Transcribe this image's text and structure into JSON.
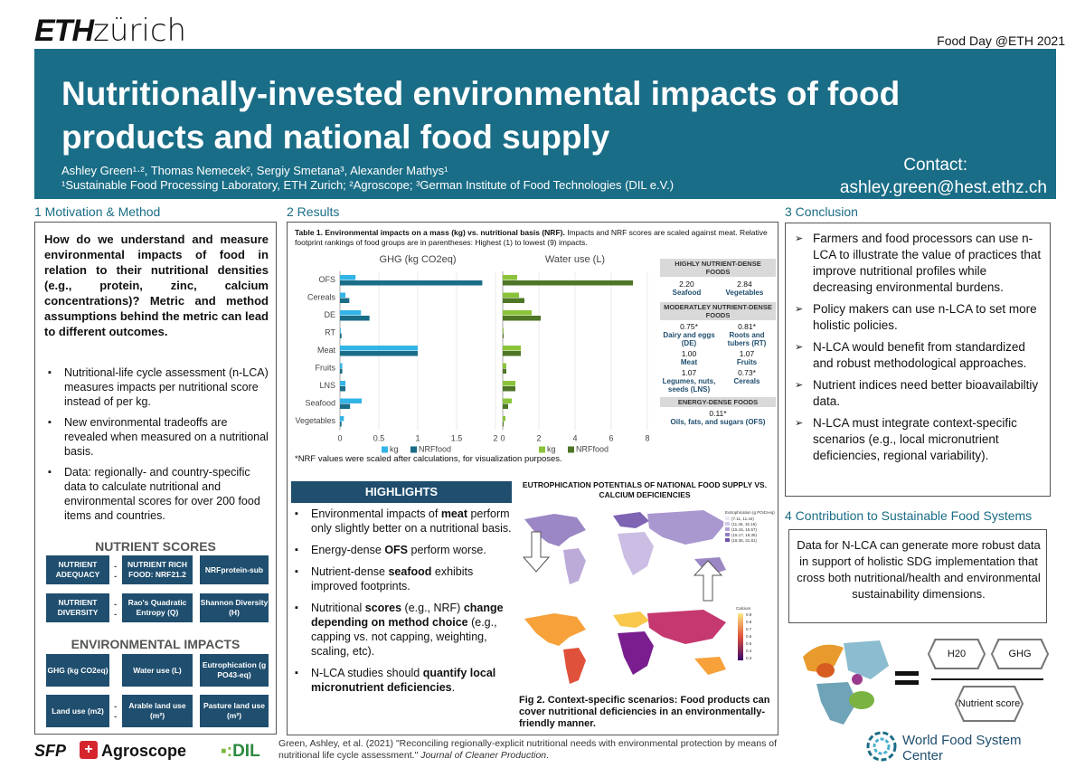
{
  "header": {
    "logo_eth": "ETH",
    "logo_zurich": "zürich",
    "event": "Food Day @ETH 2021"
  },
  "banner": {
    "title": "Nutritionally-invested environmental impacts of food products and national food supply",
    "authors_line": "Ashley Green¹·², Thomas Nemecek², Sergiy Smetana³, Alexander Mathys¹",
    "affiliations_line": "¹Sustainable Food Processing Laboratory, ETH Zurich; ²Agroscope; ³German Institute of Food Technologies (DIL e.V.)",
    "contact_label": "Contact:",
    "contact_email": "ashley.green@hest.ethz.ch"
  },
  "section1": {
    "heading": "1 Motivation & Method",
    "question": "How do we understand and measure environmental impacts of food in relation to their nutritional densities (e.g., protein, zinc, calcium concentrations)? Metric and method assumptions behind the metric can lead to different outcomes.",
    "bullets": [
      "Nutritional-life cycle assessment (n-LCA) measures impacts per nutritional score instead of per kg.",
      "New environmental tradeoffs are revealed when measured on a nutritional basis.",
      "Data: regionally- and country-specific data to calculate nutritional and environmental scores for over 200 food items and countries."
    ],
    "nutrient_title": "NUTRIENT SCORES",
    "nutrient_boxes": [
      "NUTRIENT ADEQUACY",
      "NUTRIENT RICH FOOD: NRF21.2",
      "NRFprotein-sub",
      "NUTRIENT DIVERSITY",
      "Rao's Quadratic Entropy (Q)",
      "Shannon Diversity (H)"
    ],
    "env_title": "ENVIRONMENTAL IMPACTS",
    "env_boxes": [
      "GHG (kg CO2eq)",
      "Water use (L)",
      "Eutrophication (g PO43-eq)",
      "Land use (m2)",
      "Arable land use (m²)",
      "Pasture land use (m²)"
    ]
  },
  "section2": {
    "heading": "2 Results",
    "table_caption_bold": "Table 1. Environmental impacts on a mass (kg) vs. nutritional basis (NRF).",
    "table_caption_rest": " Impacts and NRF scores are scaled against meat. Relative footprint rankings of food groups are in parentheses: Highest (1) to lowest (9) impacts.",
    "nrf_note": "*NRF values were scaled after calculations, for visualization purposes.",
    "nutrient_panel": {
      "highly_head": "HIGHLY NUTRIENT-DENSE FOODS",
      "highly": [
        {
          "val": "2.20",
          "name": "Seafood"
        },
        {
          "val": "2.84",
          "name": "Vegetables"
        }
      ],
      "moderately_head": "MODERATLEY NUTRIENT-DENSE FOODS",
      "moderately": [
        {
          "val": "0.75*",
          "name": "Dairy and eggs (DE)"
        },
        {
          "val": "0.81*",
          "name": "Roots and tubers (RT)"
        },
        {
          "val": "1.00",
          "name": "Meat"
        },
        {
          "val": "1.07",
          "name": "Fruits"
        },
        {
          "val": "1.07",
          "name": "Legumes, nuts, seeds (LNS)"
        },
        {
          "val": "0.73*",
          "name": "Cereals"
        }
      ],
      "energy_head": "ENERGY-DENSE FOODS",
      "energy": [
        {
          "val": "0.11*",
          "name": "Oils, fats, and sugars (OFS)"
        }
      ]
    },
    "highlights_head": "HIGHLIGHTS",
    "highlights": [
      {
        "pre": "Environmental impacts of ",
        "bold": "meat",
        "post": " perform only slightly better on a nutritional basis."
      },
      {
        "pre": "Energy-dense ",
        "bold": "OFS",
        "post": " perform worse."
      },
      {
        "pre": "Nutrient-dense ",
        "bold": "seafood",
        "post": " exhibits improved footprints."
      },
      {
        "pre": "Nutritional ",
        "bold": "scores",
        "post": " (e.g., NRF) ",
        "bold2": "change depending on method choice",
        "post2": " (e.g., capping vs. not capping, weighting, scaling, etc)."
      },
      {
        "pre": "N-LCA studies should ",
        "bold": "quantify local micronutrient deficiencies",
        "post": "."
      }
    ],
    "map_title": "EUTROPHICATION POTENTIALS OF NATIONAL FOOD SUPPLY VS. CALCIUM DEFICIENCIES",
    "map_legend1_title": "Eutrophication (g PO43-eq)",
    "map_legend1": [
      "(7.11, 11.44)",
      "(11.45, 15.15)",
      "(15.15, 15.57)",
      "(15.17, 18.35)",
      "(18.36, 31.81)"
    ],
    "map_legend2_title": "Calcium",
    "map_legend2": [
      "0.9",
      "0.8",
      "0.7",
      "0.6",
      "0.5",
      "0.4",
      "0.3"
    ],
    "fig2_caption": "Fig 2. Context-specific scenarios: Food products can cover nutritional deficiencies in an environmentally-friendly manner."
  },
  "chart_data": [
    {
      "type": "bar",
      "title": "GHG (kg CO2eq)",
      "categories": [
        "OFS",
        "Cereals",
        "DE",
        "RT",
        "Meat",
        "Fruits",
        "LNS",
        "Seafood",
        "Vegetables"
      ],
      "series": [
        {
          "name": "kg",
          "values": [
            0.2,
            0.07,
            0.27,
            0.01,
            1.0,
            0.03,
            0.07,
            0.28,
            0.05
          ],
          "color": "#33b4e6"
        },
        {
          "name": "NRFfood",
          "values": [
            1.83,
            0.12,
            0.38,
            0.02,
            1.0,
            0.03,
            0.07,
            0.13,
            0.02
          ],
          "color": "#1a6d86"
        }
      ],
      "xlim": [
        0,
        2
      ],
      "xticks": [
        "0",
        "0.5",
        "1",
        "1.5",
        "2"
      ]
    },
    {
      "type": "bar",
      "title": "Water use (L)",
      "categories": [
        "OFS",
        "Cereals",
        "DE",
        "RT",
        "Meat",
        "Fruits",
        "LNS",
        "Seafood",
        "Vegetables"
      ],
      "series": [
        {
          "name": "kg",
          "values": [
            0.8,
            0.9,
            1.6,
            0.05,
            1.0,
            0.2,
            0.7,
            0.5,
            0.15
          ],
          "color": "#8ac33a"
        },
        {
          "name": "NRFfood",
          "values": [
            7.2,
            1.2,
            2.1,
            0.05,
            1.0,
            0.2,
            0.7,
            0.3,
            0.05
          ],
          "color": "#4f7527"
        }
      ],
      "xlim": [
        0,
        8
      ],
      "xticks": [
        "0",
        "2",
        "4",
        "6",
        "8"
      ]
    }
  ],
  "section3": {
    "heading": "3 Conclusion",
    "bullets": [
      "Farmers and food processors can use n-LCA to illustrate the value of practices that improve nutritional profiles while decreasing environmental burdens.",
      "Policy makers can use n-LCA to set more holistic policies.",
      "N-LCA would benefit from standardized and robust methodological approaches.",
      "Nutrient indices need better bioavailabiltiy data.",
      "N-LCA must integrate context-specific scenarios (e.g., local micronutrient deficiencies, regional variability)."
    ]
  },
  "section4": {
    "heading": "4 Contribution to Sustainable Food Systems",
    "text": "Data for N-LCA can generate more robust data in support of holistic SDG implementation that cross both nutritional/health and environmental sustainability dimensions.",
    "hex_h2o": "H20",
    "hex_ghg": "GHG",
    "hex_nutrient": "Nutrient score"
  },
  "footer": {
    "ref_pre": "Green, Ashley, et al. (2021) \"Reconciling regionally-explicit nutritional needs with environmental protection by means of nutritional life cycle assessment.\" ",
    "ref_journal": "Journal of Cleaner Production",
    "ref_post": ".",
    "logo_sfp": "SFP",
    "logo_agroscope": "Agroscope",
    "logo_dil": "DIL",
    "logo_wfsc_1": "World Food System",
    "logo_wfsc_2": "Center"
  }
}
